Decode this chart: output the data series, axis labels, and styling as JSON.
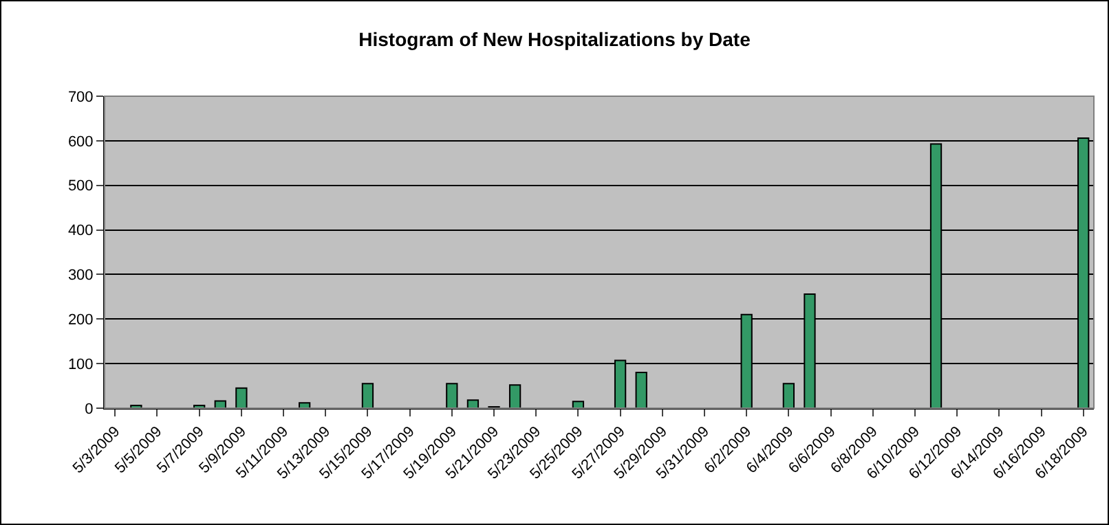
{
  "chart_data": {
    "type": "bar",
    "title": "Histogram of New Hospitalizations by Date",
    "categories": [
      "5/3/2009",
      null,
      "5/5/2009",
      null,
      "5/7/2009",
      null,
      "5/9/2009",
      null,
      "5/11/2009",
      null,
      "5/13/2009",
      null,
      "5/15/2009",
      null,
      "5/17/2009",
      null,
      "5/19/2009",
      null,
      "5/21/2009",
      null,
      "5/23/2009",
      null,
      "5/25/2009",
      null,
      "5/27/2009",
      null,
      "5/29/2009",
      null,
      "5/31/2009",
      null,
      "6/2/2009",
      null,
      "6/4/2009",
      null,
      "6/6/2009",
      null,
      "6/8/2009",
      null,
      "6/10/2009",
      null,
      "6/12/2009",
      null,
      "6/14/2009",
      null,
      "6/16/2009",
      null,
      "6/18/2009"
    ],
    "values": [
      0,
      6,
      0,
      0,
      6,
      16,
      45,
      0,
      0,
      12,
      0,
      0,
      55,
      0,
      0,
      0,
      55,
      18,
      3,
      52,
      0,
      0,
      15,
      0,
      107,
      80,
      0,
      0,
      0,
      0,
      210,
      0,
      55,
      256,
      0,
      0,
      0,
      0,
      0,
      593,
      0,
      0,
      0,
      0,
      0,
      0,
      606
    ],
    "color": "#339966",
    "ylim": [
      0,
      700
    ],
    "yticks": [
      0,
      100,
      200,
      300,
      400,
      500,
      600,
      700
    ],
    "grid": "y"
  }
}
